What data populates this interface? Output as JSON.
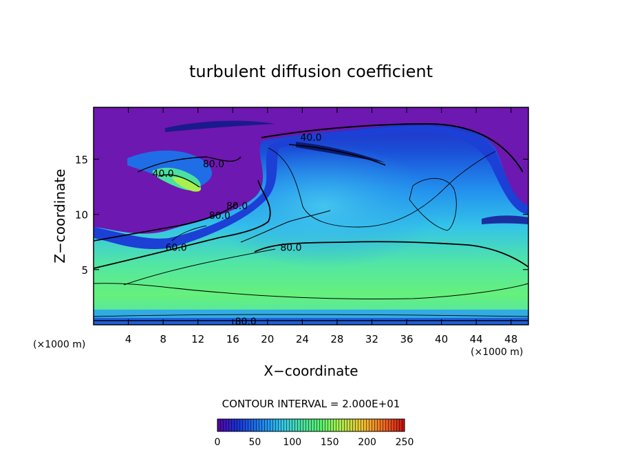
{
  "chart_data": {
    "type": "heatmap",
    "title": "turbulent diffusion coefficient",
    "xlabel": "X−coordinate",
    "ylabel": "Z−coordinate",
    "x_unit": "(×1000 m)",
    "z_unit": "(×1000 m)",
    "xlim": [
      0,
      50
    ],
    "ylim": [
      0,
      19.7
    ],
    "x_ticks": [
      4,
      8,
      12,
      16,
      20,
      24,
      28,
      32,
      36,
      40,
      44,
      48
    ],
    "y_ticks": [
      5,
      10,
      15
    ],
    "contour_interval_text": "CONTOUR INTERVAL = 2.000E+01",
    "colorbar": {
      "range": [
        0,
        250
      ],
      "ticks": [
        0,
        50,
        100,
        150,
        200,
        250
      ],
      "colors": [
        "#5b00a8",
        "#1a2fd6",
        "#1f8cf0",
        "#35c8e8",
        "#4be0a0",
        "#56f070",
        "#a8f050",
        "#f0c030",
        "#f06020",
        "#c81010"
      ]
    },
    "contour_labels": [
      {
        "text": "40.0",
        "x": 25.0,
        "z": 17.0
      },
      {
        "text": "80.0",
        "x": 13.8,
        "z": 14.6
      },
      {
        "text": "40.0",
        "x": 8.0,
        "z": 13.7
      },
      {
        "text": "80.0",
        "x": 14.5,
        "z": 9.9
      },
      {
        "text": "80.0",
        "x": 16.5,
        "z": 10.8
      },
      {
        "text": "80.0",
        "x": 22.7,
        "z": 7.0
      },
      {
        "text": "80.0",
        "x": 17.5,
        "z": 0.3
      },
      {
        "text": "60.0",
        "x": 9.5,
        "z": 7.0
      }
    ]
  }
}
